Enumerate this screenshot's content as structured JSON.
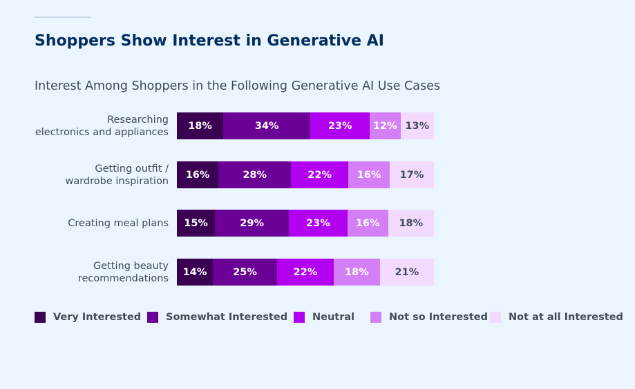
{
  "title": "Shoppers Show Interest in Generative AI",
  "chart_data": {
    "type": "bar",
    "orientation": "horizontal",
    "stacked": true,
    "subtitle": "Interest Among Shoppers in the Following Generative AI Use Cases",
    "categories": [
      [
        "Researching",
        "electronics and appliances"
      ],
      [
        "Getting outfit /",
        "wardrobe inspiration"
      ],
      [
        "Creating meal plans"
      ],
      [
        "Getting beauty",
        "recommendations"
      ]
    ],
    "series": [
      {
        "name": "Very Interested",
        "color": "#3a0052",
        "values": [
          18,
          16,
          15,
          14
        ]
      },
      {
        "name": "Somewhat Interested",
        "color": "#6a0095",
        "values": [
          34,
          28,
          29,
          25
        ]
      },
      {
        "name": "Neutral",
        "color": "#b200f0",
        "values": [
          23,
          22,
          23,
          22
        ]
      },
      {
        "name": "Not so Interested",
        "color": "#d47ff5",
        "values": [
          12,
          16,
          16,
          18
        ]
      },
      {
        "name": "Not at all Interested",
        "color": "#f3daff",
        "values": [
          13,
          17,
          18,
          21
        ]
      }
    ],
    "value_suffix": "%",
    "legend_position": "bottom",
    "grid": false
  }
}
